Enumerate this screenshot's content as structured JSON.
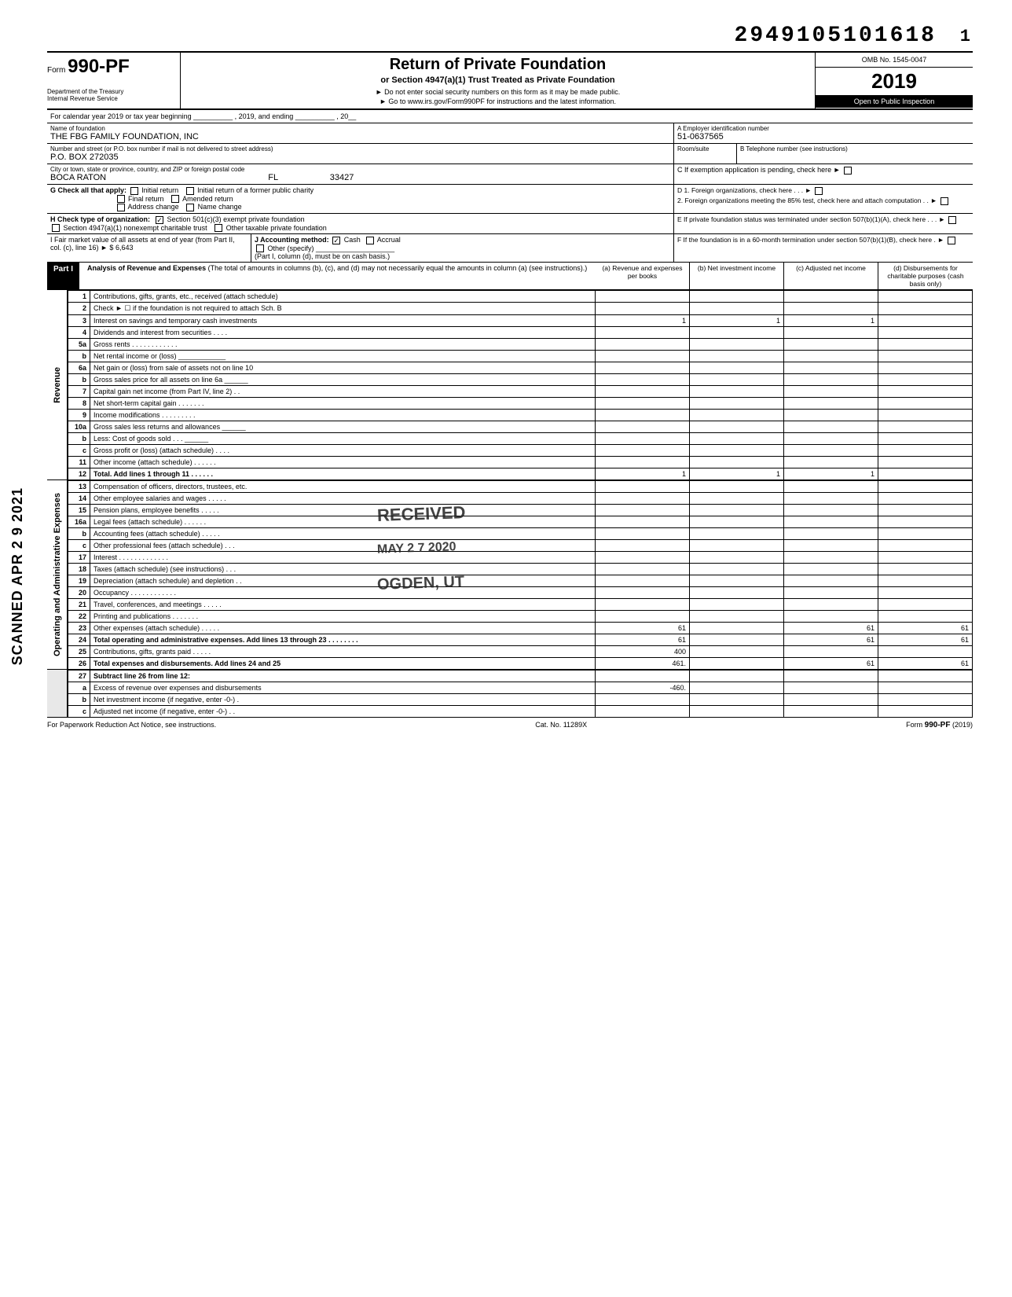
{
  "sequence": "29491051016181",
  "sequence_main": "2949105101618",
  "sequence_page": "1",
  "form": {
    "prefix": "Form",
    "number": "990-PF",
    "dept1": "Department of the Treasury",
    "dept2": "Internal Revenue Service"
  },
  "title": {
    "main": "Return of Private Foundation",
    "sub": "or Section 4947(a)(1) Trust Treated as Private Foundation",
    "note": "► Do not enter social security numbers on this form as it may be made public.",
    "link": "► Go to www.irs.gov/Form990PF for instructions and the latest information."
  },
  "right": {
    "omb": "OMB No. 1545-0047",
    "year": "2019",
    "open": "Open to Public Inspection"
  },
  "yearline": "For calendar year 2019 or tax year beginning __________ , 2019, and ending __________ , 20__",
  "id": {
    "name_label": "Name of foundation",
    "name": "THE FBG FAMILY FOUNDATION, INC",
    "ein_label": "A  Employer identification number",
    "ein": "51-0637565",
    "addr_label": "Number and street (or P.O. box number if mail is not delivered to street address)",
    "addr": "P.O. BOX 272035",
    "room_label": "Room/suite",
    "tel_label": "B  Telephone number (see instructions)",
    "city_label": "City or town, state or province, country, and ZIP or foreign postal code",
    "city": "BOCA RATON",
    "state": "FL",
    "zip": "33427",
    "c_label": "C  If exemption application is pending, check here ►"
  },
  "G": {
    "label": "G  Check all that apply:",
    "opts": [
      "Initial return",
      "Initial return of a former public charity",
      "Final return",
      "Amended return",
      "Address change",
      "Name change"
    ]
  },
  "D": {
    "d1": "D  1. Foreign organizations, check here . . . ►",
    "d2": "2. Foreign organizations meeting the 85% test, check here and attach computation . . ►"
  },
  "H": {
    "label": "H  Check type of organization:",
    "a": "Section 501(c)(3) exempt private foundation",
    "b": "Section 4947(a)(1) nonexempt charitable trust",
    "c": "Other taxable private foundation"
  },
  "E": "E  If private foundation status was terminated under section 507(b)(1)(A), check here . . . ►",
  "I": {
    "label": "I   Fair market value of all assets at end of year (from Part II, col. (c), line 16) ►  $",
    "value": "6,643"
  },
  "J": {
    "label": "J  Accounting method:",
    "cash": "Cash",
    "accrual": "Accrual",
    "other": "Other (specify) ____________________",
    "note": "(Part I, column (d), must be on cash basis.)"
  },
  "F": "F  If the foundation is in a 60-month termination under section 507(b)(1)(B), check here . ►",
  "part1": {
    "tag": "Part I",
    "title": "Analysis of Revenue and Expenses",
    "paren": "(The total of amounts in columns (b), (c), and (d) may not necessarily equal the amounts in column (a) (see instructions).)",
    "cols": {
      "a": "(a) Revenue and expenses per books",
      "b": "(b) Net investment income",
      "c": "(c) Adjusted net income",
      "d": "(d) Disbursements for charitable purposes (cash basis only)"
    }
  },
  "rows": [
    {
      "n": "1",
      "d": "Contributions, gifts, grants, etc., received (attach schedule)"
    },
    {
      "n": "2",
      "d": "Check ► ☐ if the foundation is not required to attach Sch. B"
    },
    {
      "n": "3",
      "d": "Interest on savings and temporary cash investments",
      "a": "1",
      "b": "1",
      "c": "1"
    },
    {
      "n": "4",
      "d": "Dividends and interest from securities . . . ."
    },
    {
      "n": "5a",
      "d": "Gross rents . . . . . . . . . . . ."
    },
    {
      "n": "b",
      "d": "Net rental income or (loss) ____________"
    },
    {
      "n": "6a",
      "d": "Net gain or (loss) from sale of assets not on line 10"
    },
    {
      "n": "b",
      "d": "Gross sales price for all assets on line 6a ______"
    },
    {
      "n": "7",
      "d": "Capital gain net income (from Part IV, line 2) . ."
    },
    {
      "n": "8",
      "d": "Net short-term capital gain . . . . . . ."
    },
    {
      "n": "9",
      "d": "Income modifications . . . . . . . . ."
    },
    {
      "n": "10a",
      "d": "Gross sales less returns and allowances ______"
    },
    {
      "n": "b",
      "d": "Less: Cost of goods sold . . . ______"
    },
    {
      "n": "c",
      "d": "Gross profit or (loss) (attach schedule) . . . ."
    },
    {
      "n": "11",
      "d": "Other income (attach schedule) . . . . . ."
    },
    {
      "n": "12",
      "d": "Total. Add lines 1 through 11 . . . . . .",
      "bold": true,
      "a": "1",
      "b": "1",
      "c": "1"
    }
  ],
  "exp_rows": [
    {
      "n": "13",
      "d": "Compensation of officers, directors, trustees, etc."
    },
    {
      "n": "14",
      "d": "Other employee salaries and wages . . . . ."
    },
    {
      "n": "15",
      "d": "Pension plans, employee benefits . . . . ."
    },
    {
      "n": "16a",
      "d": "Legal fees (attach schedule) . . . . . ."
    },
    {
      "n": "b",
      "d": "Accounting fees (attach schedule) . . . . ."
    },
    {
      "n": "c",
      "d": "Other professional fees (attach schedule) . . ."
    },
    {
      "n": "17",
      "d": "Interest . . . . . . . . . . . . ."
    },
    {
      "n": "18",
      "d": "Taxes (attach schedule) (see instructions) . . ."
    },
    {
      "n": "19",
      "d": "Depreciation (attach schedule) and depletion . ."
    },
    {
      "n": "20",
      "d": "Occupancy . . . . . . . . . . . ."
    },
    {
      "n": "21",
      "d": "Travel, conferences, and meetings . . . . ."
    },
    {
      "n": "22",
      "d": "Printing and publications . . . . . . ."
    },
    {
      "n": "23",
      "d": "Other expenses (attach schedule) . . . . .",
      "a": "61",
      "c": "61",
      "dcol": "61"
    },
    {
      "n": "24",
      "d": "Total operating and administrative expenses. Add lines 13 through 23 . . . . . . . .",
      "bold": true,
      "a": "61",
      "c": "61",
      "dcol": "61"
    },
    {
      "n": "25",
      "d": "Contributions, gifts, grants paid . . . . .",
      "a": "400"
    },
    {
      "n": "26",
      "d": "Total expenses and disbursements. Add lines 24 and 25",
      "bold": true,
      "a": "461.",
      "c": "61",
      "dcol": "61"
    }
  ],
  "net_rows": [
    {
      "n": "27",
      "d": "Subtract line 26 from line 12:",
      "bold": true
    },
    {
      "n": "a",
      "d": "Excess of revenue over expenses and disbursements",
      "a": "-460."
    },
    {
      "n": "b",
      "d": "Net investment income (if negative, enter -0-) ."
    },
    {
      "n": "c",
      "d": "Adjusted net income (if negative, enter -0-) . ."
    }
  ],
  "side_labels": {
    "revenue": "Revenue",
    "expenses": "Operating and Administrative Expenses"
  },
  "stamp": {
    "received": "RECEIVED",
    "date": "MAY 2 7 2020",
    "ogden": "OGDEN, UT",
    "scanned": "SCANNED APR 2 9 2021"
  },
  "footer": {
    "left": "For Paperwork Reduction Act Notice, see instructions.",
    "mid": "Cat. No. 11289X",
    "right": "Form 990-PF (2019)"
  }
}
